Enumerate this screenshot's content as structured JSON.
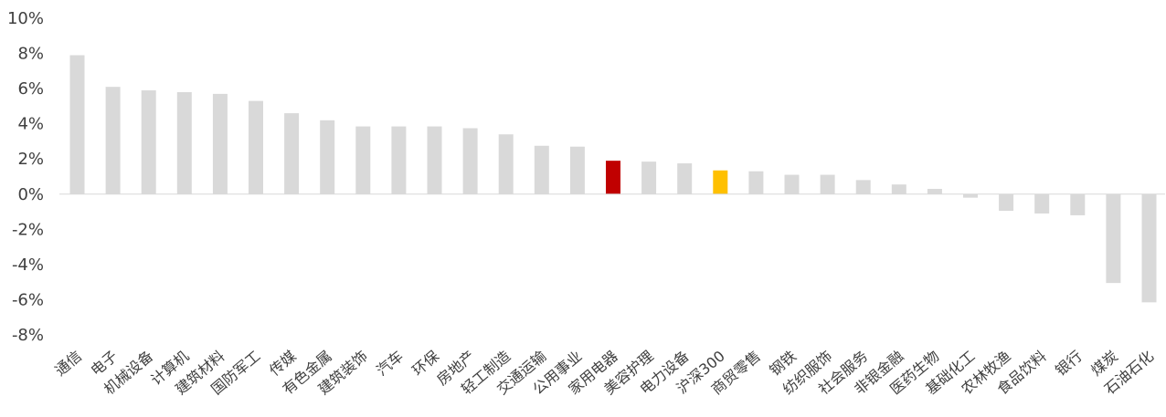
{
  "chart_data": {
    "type": "bar",
    "categories": [
      "通信",
      "电子",
      "机械设备",
      "计算机",
      "建筑材料",
      "国防军工",
      "传媒",
      "有色金属",
      "建筑装饰",
      "汽车",
      "环保",
      "房地产",
      "轻工制造",
      "交通运输",
      "公用事业",
      "家用电器",
      "美容护理",
      "电力设备",
      "沪深300",
      "商贸零售",
      "钢铁",
      "纺织服饰",
      "社会服务",
      "非银金融",
      "医药生物",
      "基础化工",
      "农林牧渔",
      "食品饮料",
      "银行",
      "煤炭",
      "石油石化"
    ],
    "values": [
      7.9,
      6.1,
      5.9,
      5.8,
      5.7,
      5.3,
      4.6,
      4.2,
      3.85,
      3.85,
      3.85,
      3.75,
      3.4,
      2.75,
      2.7,
      1.9,
      1.85,
      1.75,
      1.35,
      1.3,
      1.1,
      1.1,
      0.8,
      0.55,
      0.3,
      -0.2,
      -0.95,
      -1.1,
      -1.2,
      -5.05,
      -6.15
    ],
    "highlight": {
      "家用电器": "#c00000",
      "沪深300": "#ffc000"
    },
    "default_color": "#d9d9d9",
    "ylim": [
      -8,
      10
    ],
    "yticks": [
      "10%",
      "8%",
      "6%",
      "4%",
      "2%",
      "0%",
      "-2%",
      "-4%",
      "-6%",
      "-8%"
    ],
    "title": "",
    "xlabel": "",
    "ylabel": "",
    "grid": false
  }
}
